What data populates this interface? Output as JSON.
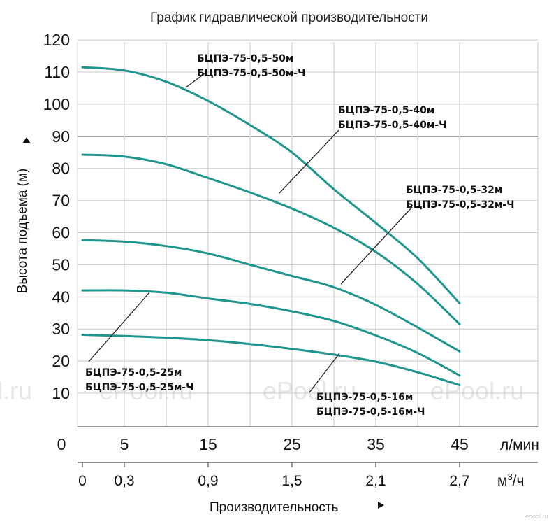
{
  "chart_data": {
    "type": "line",
    "title": "График гидравлической производительности",
    "ylabel": "Высота подъема (м)",
    "xlabel": "Производительность",
    "x_unit_primary": "л/мин",
    "x_unit_secondary": "м3/ч",
    "yticks": [
      "10",
      "20",
      "30",
      "40",
      "50",
      "60",
      "70",
      "80",
      "90",
      "100",
      "110",
      "120"
    ],
    "ylim": [
      10,
      120
    ],
    "xticks_primary": [
      "0",
      "5",
      "15",
      "25",
      "35",
      "45"
    ],
    "xticks_secondary": [
      "0",
      "0,3",
      "0,9",
      "1,5",
      "2,1",
      "2,7"
    ],
    "xlim": [
      0,
      48
    ],
    "grid": true,
    "series": [
      {
        "name_line1": "БЦПЭ-75-0,5-50м",
        "name_line2": "БЦПЭ-75-0,5-50м-Ч",
        "x": [
          0,
          5,
          10,
          15,
          20,
          25,
          30,
          35,
          40,
          45
        ],
        "y": [
          111.5,
          110.5,
          107,
          101,
          93.5,
          85,
          73.5,
          63,
          52,
          38
        ]
      },
      {
        "name_line1": "БЦПЭ-75-0,5-40м",
        "name_line2": "БЦПЭ-75-0,5-40м-Ч",
        "x": [
          0,
          5,
          10,
          15,
          20,
          25,
          30,
          35,
          40,
          45
        ],
        "y": [
          84.3,
          83.7,
          81.3,
          77,
          72.5,
          67.5,
          61.5,
          54,
          44,
          31.5
        ]
      },
      {
        "name_line1": "БЦПЭ-75-0,5-32м",
        "name_line2": "БЦПЭ-75-0,5-32м-Ч",
        "x": [
          0,
          5,
          10,
          15,
          20,
          25,
          30,
          35,
          40,
          45
        ],
        "y": [
          57.7,
          57.2,
          55.8,
          53.5,
          50,
          46.5,
          43,
          37.5,
          30.5,
          23
        ]
      },
      {
        "name_line1": "БЦПЭ-75-0,5-25м",
        "name_line2": "БЦПЭ-75-0,5-25м-Ч",
        "x": [
          0,
          5,
          10,
          15,
          20,
          25,
          30,
          35,
          40,
          45
        ],
        "y": [
          42,
          42,
          41.3,
          39.5,
          37.8,
          35.5,
          32.5,
          28,
          22.5,
          15.5
        ]
      },
      {
        "name_line1": "БЦПЭ-75-0,5-16м",
        "name_line2": "БЦПЭ-75-0,5-16м-Ч",
        "x": [
          0,
          5,
          10,
          15,
          20,
          25,
          30,
          35,
          40,
          45
        ],
        "y": [
          28.2,
          27.8,
          27.3,
          26.5,
          25.3,
          23.8,
          22,
          19.8,
          16.5,
          12.5
        ]
      }
    ],
    "colors": {
      "curve": "#1e958d",
      "grid": "#c9c9c9",
      "axis": "#555555",
      "pointer": "#222222"
    }
  },
  "watermarks": [
    "l.ru",
    "ePool.ru",
    "ePool.ru",
    "ePool.ru",
    "epool.ru"
  ]
}
